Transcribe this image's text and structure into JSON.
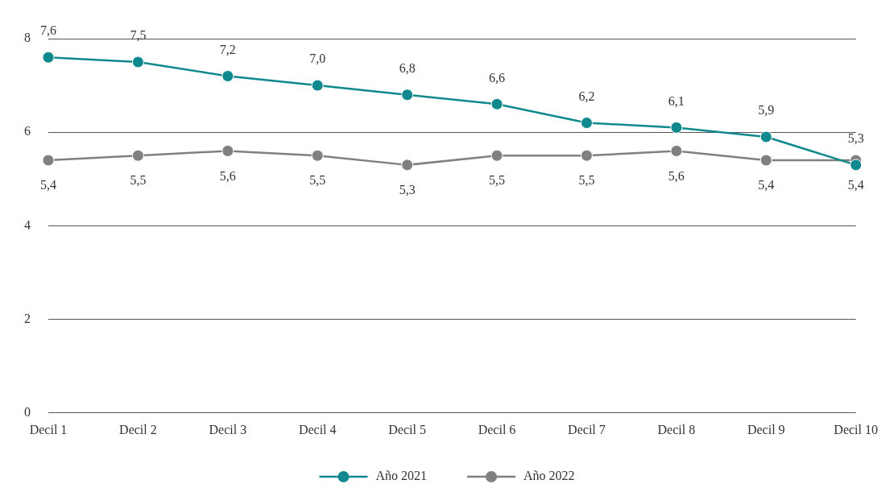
{
  "chart_data": {
    "type": "line",
    "categories": [
      "Decil 1",
      "Decil 2",
      "Decil 3",
      "Decil 4",
      "Decil 5",
      "Decil 6",
      "Decil 7",
      "Decil 8",
      "Decil 9",
      "Decil 10"
    ],
    "series": [
      {
        "name": "Año 2021",
        "color": "#10898e",
        "values": [
          7.6,
          7.5,
          7.2,
          7.0,
          6.8,
          6.6,
          6.2,
          6.1,
          5.9,
          5.3
        ],
        "value_labels": [
          "7,6",
          "7,5",
          "7,2",
          "7,0",
          "6,8",
          "6,6",
          "6,2",
          "6,1",
          "5,9",
          "5,3"
        ]
      },
      {
        "name": "Año 2022",
        "color": "#808080",
        "values": [
          5.4,
          5.5,
          5.6,
          5.5,
          5.3,
          5.5,
          5.5,
          5.6,
          5.4,
          5.4
        ],
        "value_labels": [
          "5,4",
          "5,5",
          "5,6",
          "5,5",
          "5,3",
          "5,5",
          "5,5",
          "5,6",
          "5,4",
          "5,4"
        ]
      }
    ],
    "ylim": [
      0,
      8
    ],
    "yticks": [
      0,
      2,
      4,
      6,
      8
    ],
    "grid": "y",
    "legend": "bottom",
    "marker": "circle",
    "line_style": "solid"
  }
}
